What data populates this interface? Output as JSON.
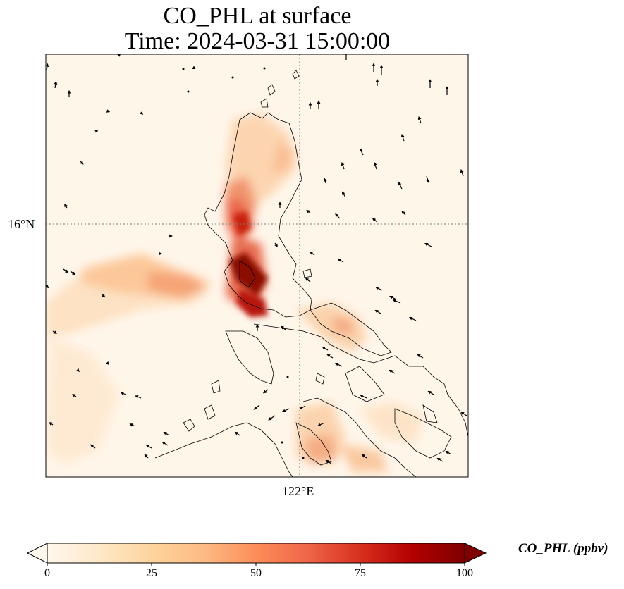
{
  "map": {
    "title_line1": "CO_PHL at surface",
    "title_line2": "Time: 2024-03-31 15:00:00",
    "lat_label": "16°N",
    "lon_label": "122°E",
    "variable": "CO_PHL",
    "colormap": "OrRd",
    "gridlines": "dotted"
  },
  "colorbar": {
    "label": "CO_PHL (ppbv)",
    "ticks": [
      "0",
      "25",
      "50",
      "75",
      "100"
    ],
    "range": [
      0,
      100
    ],
    "extend": "both",
    "colors": [
      "#fff7ec",
      "#fee8c8",
      "#fdd49e",
      "#fdbb84",
      "#fc8d59",
      "#ef6548",
      "#d7301f",
      "#b30000",
      "#7f0000"
    ]
  }
}
